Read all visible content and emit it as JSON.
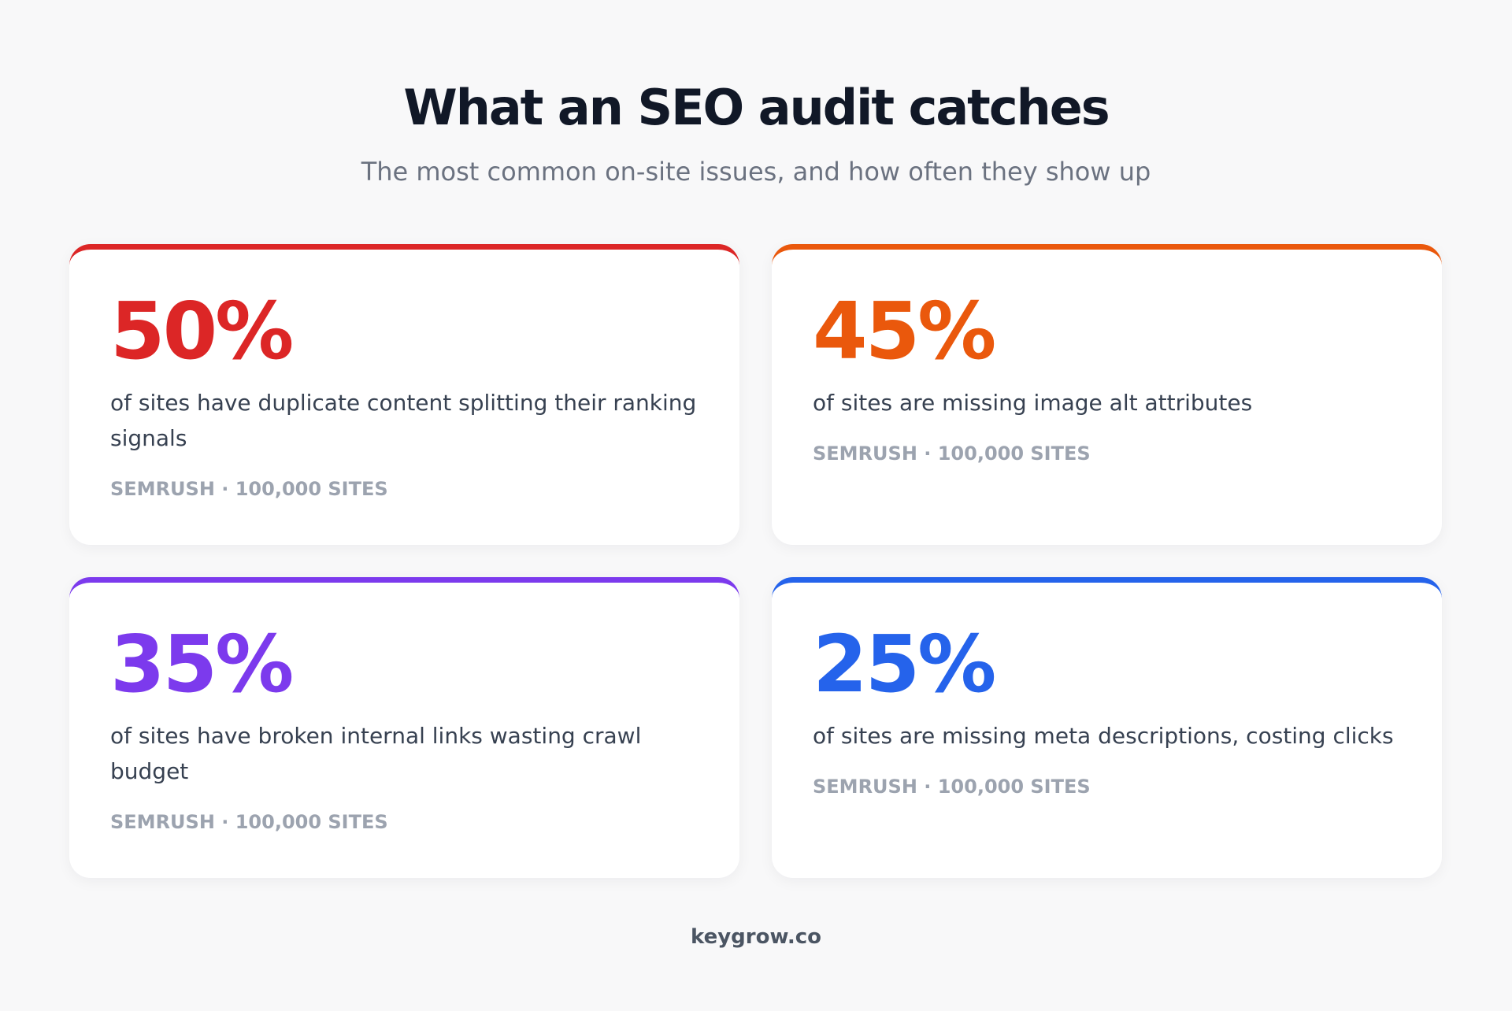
{
  "header": {
    "title": "What an SEO audit catches",
    "subtitle": "The most common on-site issues, and how often they show up"
  },
  "cards": [
    {
      "stat": "50%",
      "text": "of sites have duplicate content splitting their ranking signals",
      "source": "SEMRUSH · 100,000 SITES",
      "color": "#dc2626"
    },
    {
      "stat": "45%",
      "text": "of sites are missing image alt attributes",
      "source": "SEMRUSH · 100,000 SITES",
      "color": "#ea580c"
    },
    {
      "stat": "35%",
      "text": "of sites have broken internal links wasting crawl budget",
      "source": "SEMRUSH · 100,000 SITES",
      "color": "#7c3aed"
    },
    {
      "stat": "25%",
      "text": "of sites are missing meta descriptions, costing clicks",
      "source": "SEMRUSH · 100,000 SITES",
      "color": "#2563eb"
    }
  ],
  "footer": {
    "brand": "keygrow.co"
  }
}
